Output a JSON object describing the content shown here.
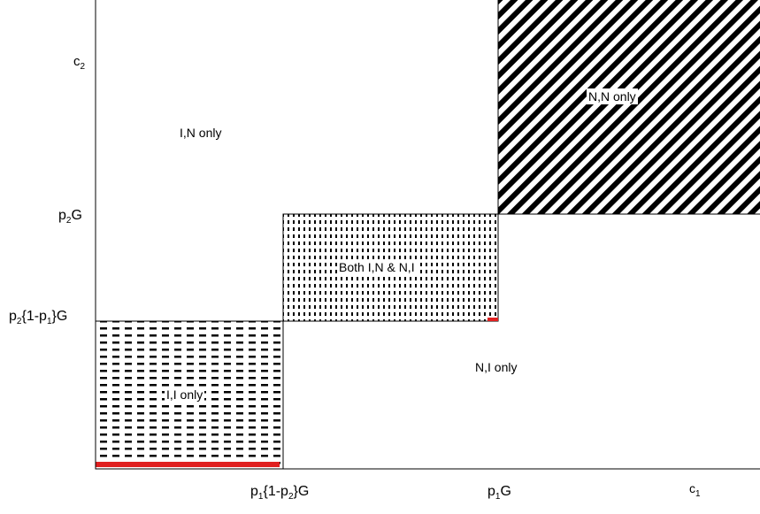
{
  "axes": {
    "x_name": "c",
    "x_sub": "1",
    "y_name": "c",
    "y_sub": "2"
  },
  "x_ticks": [
    {
      "a": "p",
      "a_sub": "1",
      "b": "{1-p",
      "b_sub": "2",
      "c": "}G"
    },
    {
      "a": "p",
      "a_sub": "1",
      "b": "G",
      "b_sub": "",
      "c": ""
    }
  ],
  "y_ticks": [
    {
      "a": "p",
      "a_sub": "2",
      "b": "G",
      "b_sub": "",
      "c": ""
    },
    {
      "a": "p",
      "a_sub": "2",
      "b": "{1-p",
      "b_sub": "1",
      "c": "}G"
    }
  ],
  "regions": {
    "in_only": "I,N only",
    "ni_only": "N,I only",
    "nn_only": "N,N only",
    "both": "Both I,N & N,I",
    "ii_only": "I,I only"
  },
  "colors": {
    "pattern": "#000000",
    "highlight": "#e02020",
    "background": "#ffffff"
  }
}
